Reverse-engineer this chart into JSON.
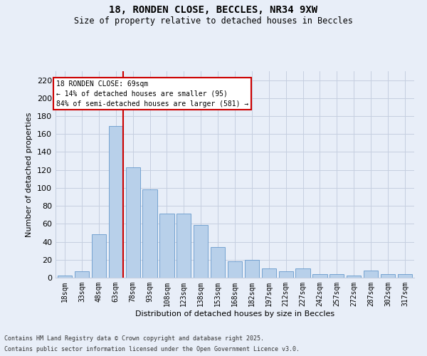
{
  "title_line1": "18, RONDEN CLOSE, BECCLES, NR34 9XW",
  "title_line2": "Size of property relative to detached houses in Beccles",
  "xlabel": "Distribution of detached houses by size in Beccles",
  "ylabel": "Number of detached properties",
  "bar_labels": [
    "18sqm",
    "33sqm",
    "48sqm",
    "63sqm",
    "78sqm",
    "93sqm",
    "108sqm",
    "123sqm",
    "138sqm",
    "153sqm",
    "168sqm",
    "182sqm",
    "197sqm",
    "212sqm",
    "227sqm",
    "242sqm",
    "257sqm",
    "272sqm",
    "287sqm",
    "302sqm",
    "317sqm"
  ],
  "bar_values": [
    2,
    7,
    48,
    169,
    123,
    98,
    71,
    71,
    59,
    34,
    18,
    20,
    10,
    7,
    10,
    4,
    4,
    2,
    8,
    4,
    4
  ],
  "bar_color": "#b8d0ea",
  "bar_edge_color": "#6699cc",
  "annotation_line1": "18 RONDEN CLOSE: 69sqm",
  "annotation_line2": "← 14% of detached houses are smaller (95)",
  "annotation_line3": "84% of semi-detached houses are larger (581) →",
  "vline_index": 3,
  "vline_color": "#cc0000",
  "ylim_max": 230,
  "yticks": [
    0,
    20,
    40,
    60,
    80,
    100,
    120,
    140,
    160,
    180,
    200,
    220
  ],
  "bg_color": "#e8eef8",
  "grid_color": "#c5cfe0",
  "footnote_line1": "Contains HM Land Registry data © Crown copyright and database right 2025.",
  "footnote_line2": "Contains public sector information licensed under the Open Government Licence v3.0."
}
